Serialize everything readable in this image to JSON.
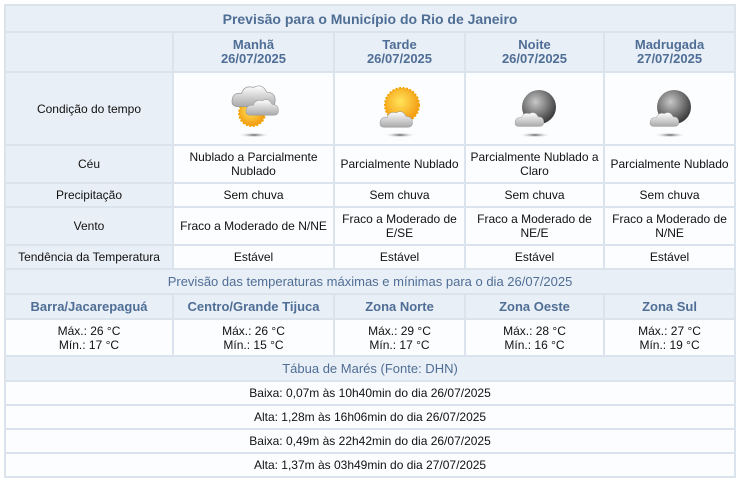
{
  "title": "Previsão para o Município do Rio de Janeiro",
  "periods": [
    {
      "name": "Manhã",
      "date": "26/07/2025",
      "icon": "sun-behind-clouds-icon",
      "ceu": "Nublado a Parcialmente Nublado",
      "precipitacao": "Sem chuva",
      "vento": "Fraco a Moderado de N/NE",
      "tendencia": "Estável"
    },
    {
      "name": "Tarde",
      "date": "26/07/2025",
      "icon": "sun-small-cloud-icon",
      "ceu": "Parcialmente Nublado",
      "precipitacao": "Sem chuva",
      "vento": "Fraco a Moderado de E/SE",
      "tendencia": "Estável"
    },
    {
      "name": "Noite",
      "date": "26/07/2025",
      "icon": "moon-cloud-icon",
      "ceu": "Parcialmente Nublado a Claro",
      "precipitacao": "Sem chuva",
      "vento": "Fraco a Moderado de NE/E",
      "tendencia": "Estável"
    },
    {
      "name": "Madrugada",
      "date": "27/07/2025",
      "icon": "moon-cloud-icon",
      "ceu": "Parcialmente Nublado",
      "precipitacao": "Sem chuva",
      "vento": "Fraco a Moderado de N/NE",
      "tendencia": "Estável"
    }
  ],
  "row_labels": {
    "condicao": "Condição do tempo",
    "ceu": "Céu",
    "precipitacao": "Precipitação",
    "vento": "Vento",
    "tendencia": "Tendência da Temperatura"
  },
  "temps_title": "Previsão das temperaturas máximas e mínimas para o dia 26/07/2025",
  "zones": [
    {
      "name": "Barra/Jacarepaguá",
      "max": "Máx.: 26 °C",
      "min": "Mín.: 17 °C"
    },
    {
      "name": "Centro/Grande Tijuca",
      "max": "Máx.: 26 °C",
      "min": "Mín.: 15 °C"
    },
    {
      "name": "Zona Norte",
      "max": "Máx.: 29 °C",
      "min": "Mín.: 17 °C"
    },
    {
      "name": "Zona Oeste",
      "max": "Máx.: 28 °C",
      "min": "Mín.: 16 °C"
    },
    {
      "name": "Zona Sul",
      "max": "Máx.: 27 °C",
      "min": "Mín.: 19 °C"
    }
  ],
  "tides_title": "Tábua de Marés (Fonte: DHN)",
  "tides": [
    "Baixa: 0,07m às 10h40min do dia 26/07/2025",
    "Alta: 1,28m às 16h06min do dia 26/07/2025",
    "Baixa: 0,49m às 22h42min do dia 26/07/2025",
    "Alta: 1,37m às 03h49min do dia 27/07/2025"
  ],
  "colors": {
    "header_bg": "#e9eff6",
    "header_text": "#4f6e96",
    "border": "#dbe3ec"
  }
}
